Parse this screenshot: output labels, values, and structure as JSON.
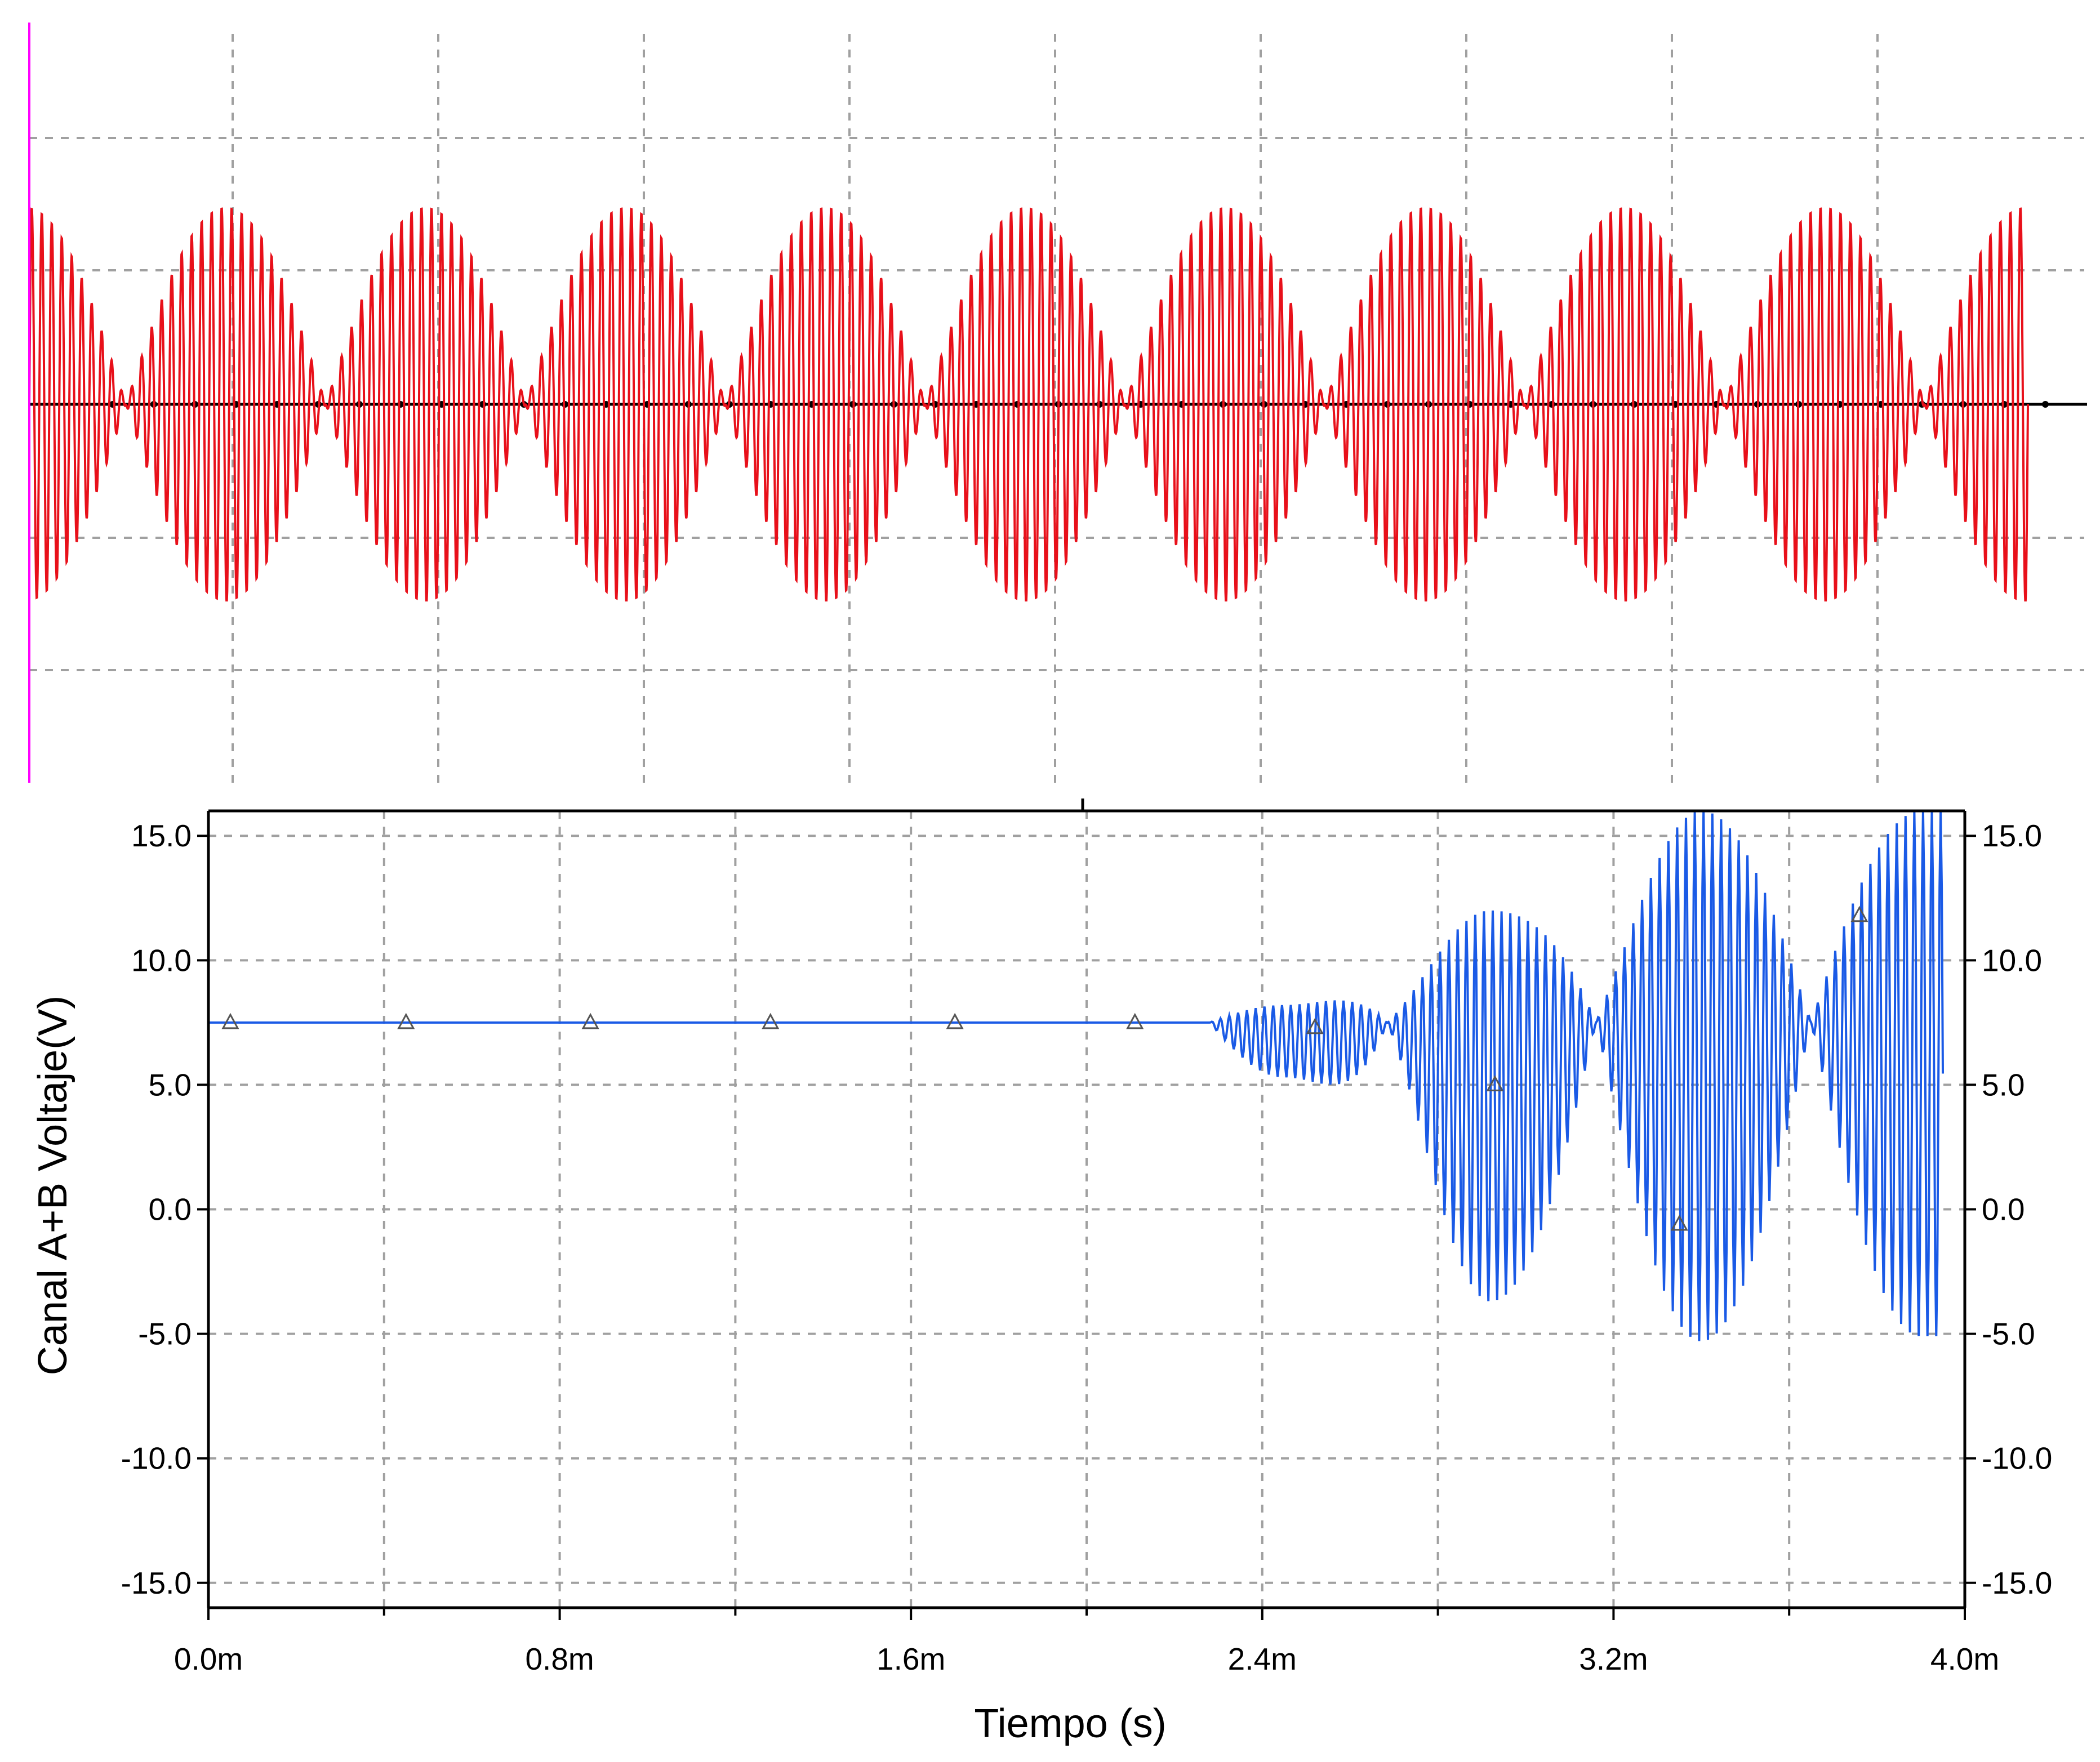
{
  "chart_data": [
    {
      "type": "line",
      "description_panel": "top",
      "series": [
        {
          "color": "#e8101a",
          "waveform": "double-sideband modulated carrier",
          "carrier_cycles": 200,
          "envelope_cycles": 10,
          "peak_amplitude": 1.45,
          "offset": 0
        }
      ],
      "grid": true,
      "reference_line_color": "#000000",
      "cursor_color": "#ff00ff"
    },
    {
      "type": "line",
      "description_panel": "bottom",
      "xlabel": "Tiempo (s)",
      "ylabel": "Canal A+B Voltaje(V)",
      "xlim": [
        0,
        0.004
      ],
      "ylim": [
        -16,
        16
      ],
      "x_ticks": [
        {
          "value": 0.0,
          "label": "0.0m"
        },
        {
          "value": 0.0008,
          "label": "0.8m"
        },
        {
          "value": 0.0016,
          "label": "1.6m"
        },
        {
          "value": 0.0024,
          "label": "2.4m"
        },
        {
          "value": 0.0032,
          "label": "3.2m"
        },
        {
          "value": 0.004,
          "label": "4.0m"
        }
      ],
      "y_ticks": [
        {
          "value": 15,
          "label": "15.0"
        },
        {
          "value": 10,
          "label": "10.0"
        },
        {
          "value": 5,
          "label": "5.0"
        },
        {
          "value": 0,
          "label": "0.0"
        },
        {
          "value": -5,
          "label": "-5.0"
        },
        {
          "value": -10,
          "label": "-10.0"
        },
        {
          "value": -15,
          "label": "-15.0"
        }
      ],
      "grid": true,
      "series": [
        {
          "color": "#1a5ae6",
          "flat_level": 7.5,
          "onset_time": 0.00228,
          "envelope_peaks": [
            {
              "x": 0.00245,
              "max": 8.2,
              "min": 5.3
            },
            {
              "x": 0.00292,
              "max": 12.0,
              "min": -3.7
            },
            {
              "x": 0.0034,
              "max": 16.0,
              "min": -5.3
            },
            {
              "x": 0.0039,
              "max": 16.0,
              "min": -5.1
            }
          ],
          "envelope_minima": [
            0.00264,
            0.00312,
            0.0036
          ],
          "end_time": 0.00395
        }
      ],
      "markers": [
        {
          "x": 5e-05,
          "y": 7.5
        },
        {
          "x": 0.00045,
          "y": 7.5
        },
        {
          "x": 0.00087,
          "y": 7.5
        },
        {
          "x": 0.00128,
          "y": 7.5
        },
        {
          "x": 0.0017,
          "y": 7.5
        },
        {
          "x": 0.00211,
          "y": 7.5
        },
        {
          "x": 0.00252,
          "y": 7.3
        },
        {
          "x": 0.00293,
          "y": 5.0
        },
        {
          "x": 0.00335,
          "y": -0.6
        },
        {
          "x": 0.00376,
          "y": 11.8
        }
      ]
    }
  ]
}
